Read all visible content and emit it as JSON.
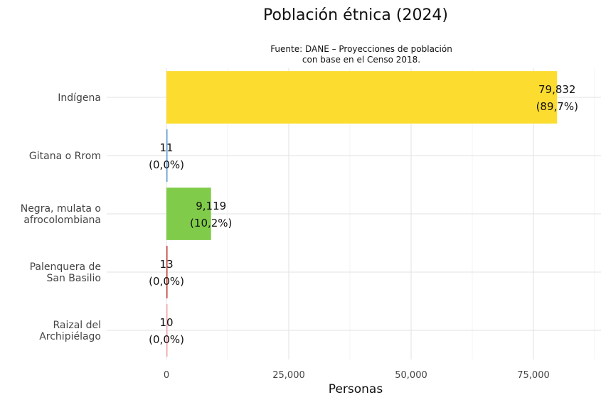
{
  "chart_data": {
    "type": "bar",
    "orientation": "horizontal",
    "title": "Población étnica (2024)",
    "subtitle_lines": [
      "Fuente: DANE – Proyecciones de población",
      "con base en el Censo 2018."
    ],
    "xlabel": "Personas",
    "ylabel": "",
    "xlim": [
      0,
      88000
    ],
    "x_ticks": [
      0,
      25000,
      50000,
      75000
    ],
    "x_tick_labels": [
      "0",
      "25,000",
      "50,000",
      "75,000"
    ],
    "grid": true,
    "legend": "none",
    "categories": [
      {
        "lines": [
          "Indígena"
        ]
      },
      {
        "lines": [
          "Gitana o Rrom"
        ]
      },
      {
        "lines": [
          "Negra, mulata o",
          "afrocolombiana"
        ]
      },
      {
        "lines": [
          "Palenquera de",
          "San Basilio"
        ]
      },
      {
        "lines": [
          "Raizal del",
          "Archipiélago"
        ]
      }
    ],
    "values": [
      79832,
      11,
      9119,
      13,
      10
    ],
    "value_labels": [
      "79,832",
      "11",
      "9,119",
      "13",
      "10"
    ],
    "percent_labels": [
      "(89,7%)",
      "(0,0%)",
      "(10,2%)",
      "(0,0%)",
      "(0,0%)"
    ],
    "colors": [
      "#fcdc2e",
      "#5b9bd5",
      "#80cc4a",
      "#c0392b",
      "#f4a3a8"
    ]
  }
}
